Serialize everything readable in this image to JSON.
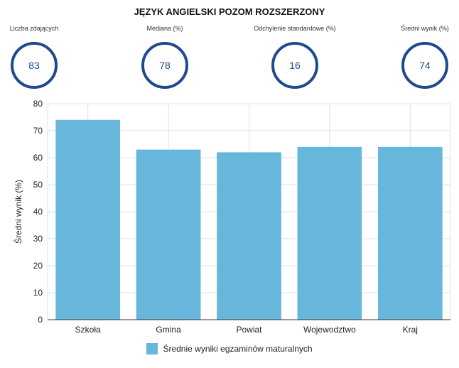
{
  "title": "JĘZYK ANGIELSKI POZOM ROZSZERZONY",
  "stats": [
    {
      "label": "Liczba zdających",
      "value": "83"
    },
    {
      "label": "Mediana (%)",
      "value": "78"
    },
    {
      "label": "Odchylenie standardowe (%)",
      "value": "16"
    },
    {
      "label": "Średni wynik (%)",
      "value": "74"
    }
  ],
  "colors": {
    "bar": "#67b6dc",
    "circle": "#1f4a8e",
    "grid": "#e0e0e0"
  },
  "chart_data": {
    "type": "bar",
    "categories": [
      "Szkoła",
      "Gmina",
      "Powiat",
      "Wojewodztwo",
      "Kraj"
    ],
    "series": [
      {
        "name": "Średnie wyniki egzaminów maturalnych",
        "values": [
          74,
          63,
          62,
          64,
          64
        ]
      }
    ],
    "xlabel": "",
    "ylabel": "Średni wynik (%)",
    "ylim": [
      0,
      80
    ],
    "yticks": [
      0,
      10,
      20,
      30,
      40,
      50,
      60,
      70,
      80
    ],
    "grid": true,
    "legend": "bottom"
  }
}
